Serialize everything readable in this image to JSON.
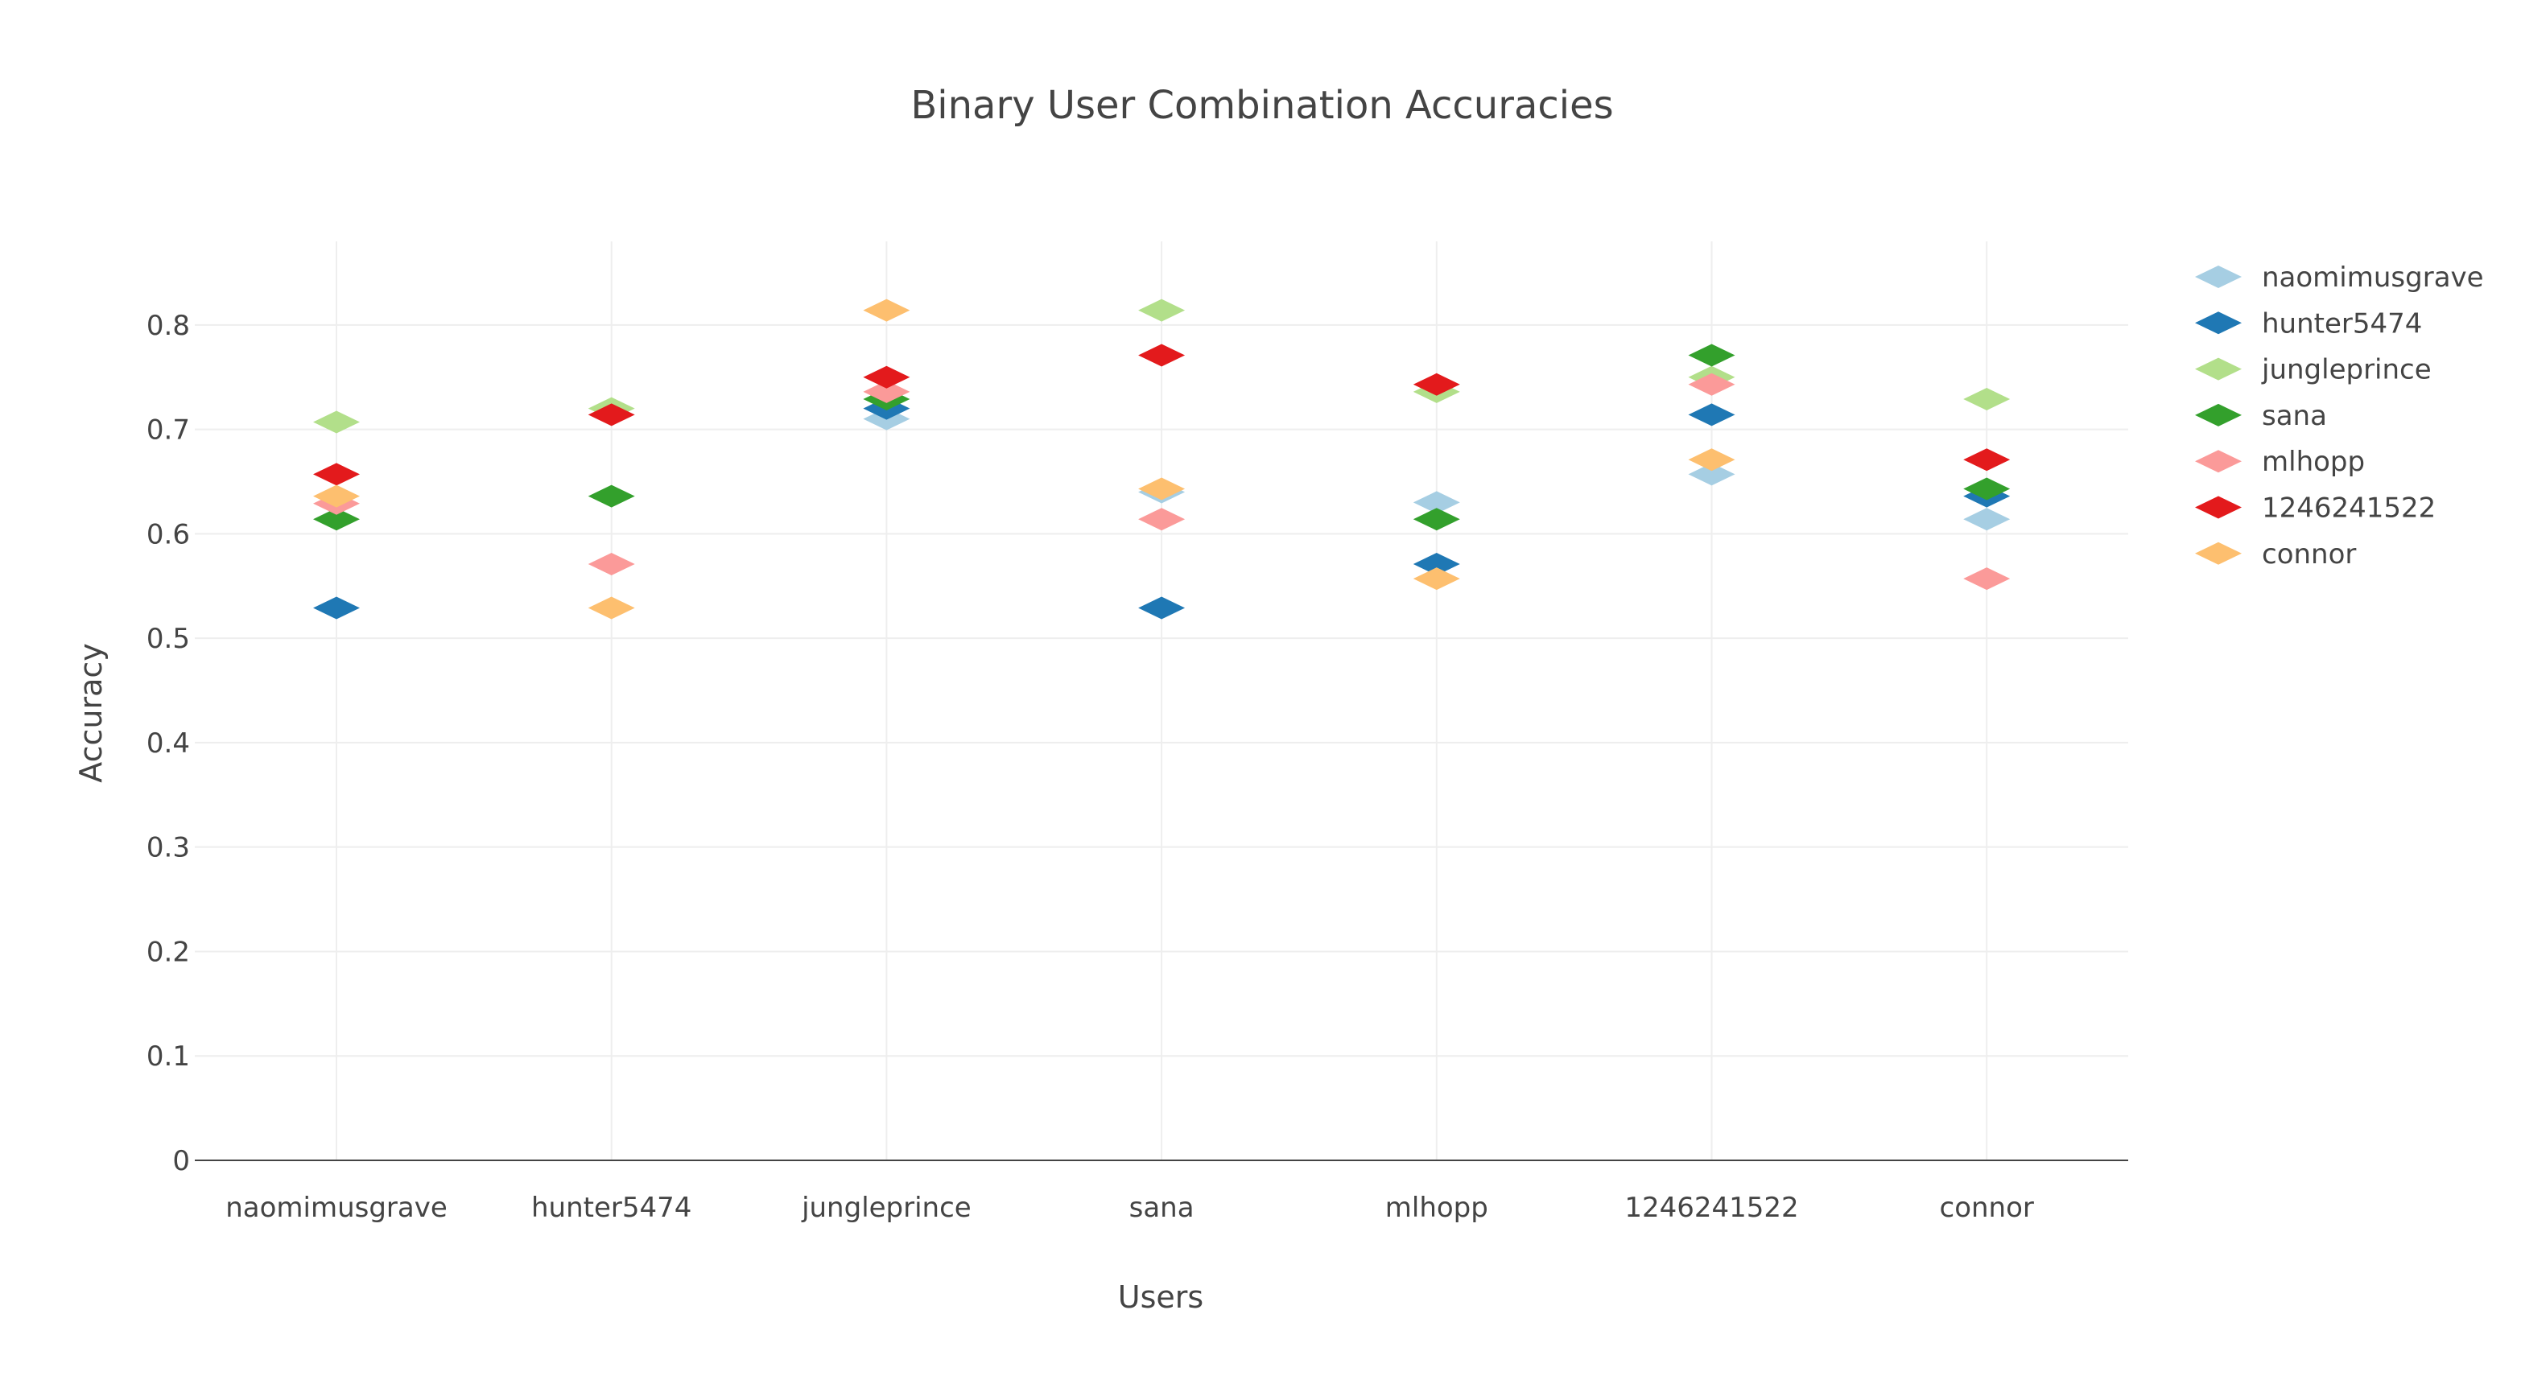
{
  "chart_data": {
    "type": "scatter",
    "title": "Binary User Combination Accuracies",
    "xlabel": "Users",
    "ylabel": "Accuracy",
    "categories": [
      "naomimusgrave",
      "hunter5474",
      "jungleprince",
      "sana",
      "mlhopp",
      "1246241522",
      "connor"
    ],
    "ylim": [
      0,
      0.88
    ],
    "yticks": [
      0,
      0.1,
      0.2,
      0.3,
      0.4,
      0.5,
      0.6,
      0.7,
      0.8
    ],
    "ytick_labels": [
      "0",
      "0.1",
      "0.2",
      "0.3",
      "0.4",
      "0.5",
      "0.6",
      "0.7",
      "0.8"
    ],
    "grid": true,
    "legend_position": "top-right",
    "marker": "diamond",
    "series": [
      {
        "name": "naomimusgrave",
        "color": "#a6cee3",
        "values": [
          null,
          null,
          0.71,
          0.64,
          0.63,
          0.657,
          0.614
        ]
      },
      {
        "name": "hunter5474",
        "color": "#1f78b4",
        "values": [
          0.529,
          null,
          0.72,
          0.529,
          0.571,
          0.714,
          0.636
        ]
      },
      {
        "name": "jungleprince",
        "color": "#b2df8a",
        "values": [
          0.707,
          0.72,
          null,
          0.814,
          0.736,
          0.75,
          0.729
        ]
      },
      {
        "name": "sana",
        "color": "#33a02c",
        "values": [
          0.614,
          0.636,
          0.729,
          null,
          0.614,
          0.771,
          0.643
        ]
      },
      {
        "name": "mlhopp",
        "color": "#fb9a99",
        "values": [
          0.629,
          0.571,
          0.736,
          0.614,
          null,
          0.743,
          0.557
        ]
      },
      {
        "name": "1246241522",
        "color": "#e31a1c",
        "values": [
          0.657,
          0.714,
          0.75,
          0.771,
          0.743,
          null,
          0.671
        ]
      },
      {
        "name": "connor",
        "color": "#fdbf6f",
        "values": [
          0.636,
          0.529,
          0.814,
          0.643,
          0.557,
          0.671,
          null
        ]
      }
    ]
  }
}
